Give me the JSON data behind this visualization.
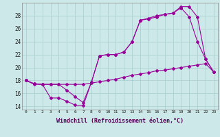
{
  "xlabel": "Windchill (Refroidissement éolien,°C)",
  "bg_color": "#cce8e8",
  "grid_color": "#a8cccc",
  "line_color": "#990099",
  "xlim": [
    -0.5,
    23.5
  ],
  "ylim": [
    13.5,
    30.0
  ],
  "yticks": [
    14,
    16,
    18,
    20,
    22,
    24,
    26,
    28
  ],
  "xticks": [
    0,
    1,
    2,
    3,
    4,
    5,
    6,
    7,
    8,
    9,
    10,
    11,
    12,
    13,
    14,
    15,
    16,
    17,
    18,
    19,
    20,
    21,
    22,
    23
  ],
  "series1_x": [
    0,
    1,
    2,
    3,
    4,
    5,
    6,
    7,
    8,
    9,
    10,
    11,
    12,
    13,
    14,
    15,
    16,
    17,
    18,
    19,
    20,
    21,
    22,
    23
  ],
  "series1_y": [
    18.0,
    17.4,
    17.4,
    17.4,
    17.4,
    17.4,
    17.4,
    17.4,
    17.6,
    17.8,
    18.0,
    18.2,
    18.5,
    18.8,
    19.0,
    19.2,
    19.5,
    19.6,
    19.8,
    20.0,
    20.2,
    20.4,
    20.6,
    19.3
  ],
  "series2_x": [
    0,
    1,
    2,
    3,
    4,
    5,
    6,
    7,
    8,
    9,
    10,
    11,
    12,
    13,
    14,
    15,
    16,
    17,
    18,
    19,
    20,
    21,
    22,
    23
  ],
  "series2_y": [
    18.0,
    17.5,
    17.4,
    15.3,
    15.3,
    14.8,
    14.2,
    14.1,
    17.7,
    21.8,
    22.0,
    22.0,
    22.4,
    24.0,
    27.3,
    27.5,
    27.8,
    28.2,
    28.4,
    29.2,
    27.8,
    24.0,
    21.3,
    19.3
  ],
  "series3_x": [
    0,
    1,
    2,
    3,
    4,
    5,
    6,
    7,
    8,
    9,
    10,
    11,
    12,
    13,
    14,
    15,
    16,
    17,
    18,
    19,
    20,
    21,
    22,
    23
  ],
  "series3_y": [
    18.0,
    17.5,
    17.4,
    17.4,
    17.4,
    16.5,
    15.5,
    14.6,
    17.7,
    21.8,
    22.0,
    22.0,
    22.4,
    24.0,
    27.3,
    27.6,
    28.0,
    28.2,
    28.4,
    29.4,
    29.4,
    27.8,
    21.3,
    19.3
  ],
  "marker": "D",
  "markersize": 2,
  "linewidth": 0.8
}
